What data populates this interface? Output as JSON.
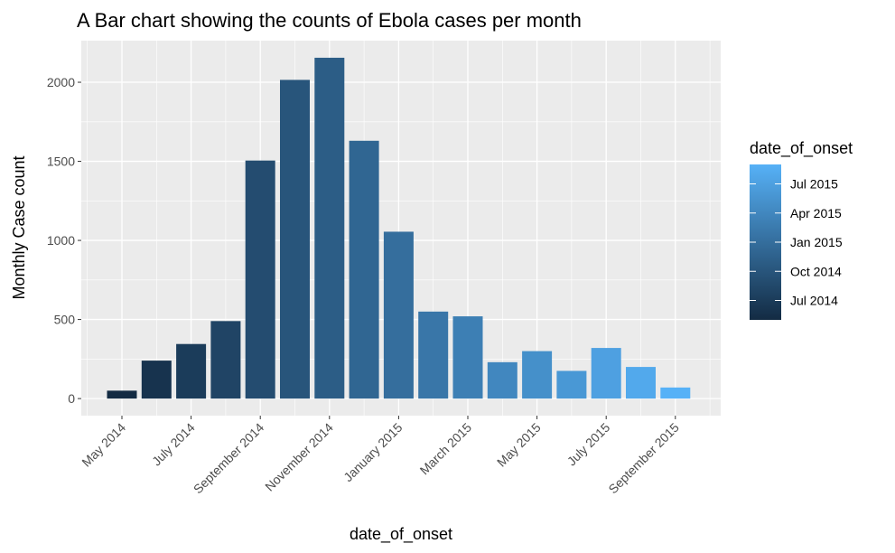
{
  "chart_data": {
    "type": "bar",
    "title": "A Bar chart showing the counts of Ebola cases per month",
    "x_label": "date_of_onset",
    "y_label": "Monthly Case count",
    "categories": [
      "May 2014",
      null,
      "July 2014",
      null,
      "September 2014",
      null,
      "November 2014",
      null,
      "January 2015",
      null,
      "March 2015",
      null,
      "May 2015",
      null,
      "July 2015",
      null,
      "September 2015"
    ],
    "values": [
      50,
      240,
      345,
      490,
      1505,
      2015,
      2155,
      1630,
      1055,
      550,
      520,
      230,
      300,
      175,
      320,
      200,
      70
    ],
    "colors": [
      "#132B43",
      "#17334E",
      "#1B3C5A",
      "#204465",
      "#244C70",
      "#28557B",
      "#2C5D86",
      "#306692",
      "#356E9D",
      "#3976A8",
      "#3D7FB4",
      "#4187BF",
      "#4590CA",
      "#4998D5",
      "#4EA0E1",
      "#52A9EC",
      "#56B1F7"
    ],
    "ylim": [
      -108,
      2263
    ],
    "yticks": [
      0,
      500,
      1000,
      1500,
      2000
    ],
    "grid": true,
    "legend": {
      "title": "date_of_onset",
      "position": "right",
      "colors": [
        "#132B43",
        "#56B1F7"
      ],
      "lim": [
        0,
        16
      ],
      "ticks": [
        {
          "value": 2,
          "label": "Jul 2014"
        },
        {
          "value": 5,
          "label": "Oct 2014"
        },
        {
          "value": 8,
          "label": "Jan 2015"
        },
        {
          "value": 11,
          "label": "Apr 2015"
        },
        {
          "value": 14,
          "label": "Jul 2015"
        }
      ]
    }
  }
}
